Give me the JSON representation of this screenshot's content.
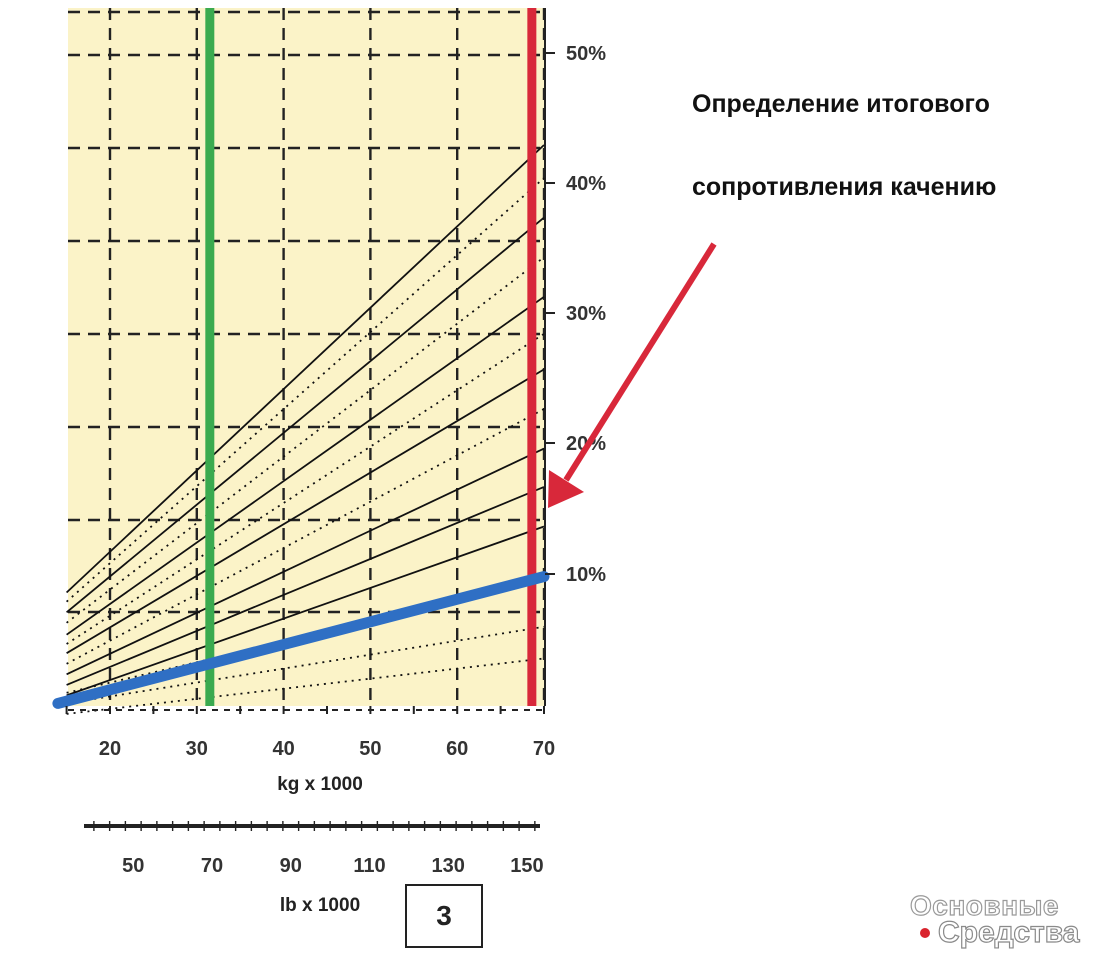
{
  "chart_data": {
    "type": "line",
    "x_axis": {
      "title": "kg x 1000",
      "ticks": [
        20,
        30,
        40,
        50,
        60,
        70
      ],
      "range": [
        15,
        70
      ]
    },
    "x_axis_secondary": {
      "title": "lb x 1000",
      "ticks": [
        50,
        70,
        90,
        110,
        130,
        150
      ],
      "range": [
        33,
        154
      ]
    },
    "right_axis": {
      "labels": [
        "10%",
        "20%",
        "30%",
        "40%",
        "50%"
      ]
    },
    "background_color": "#fbf3c8",
    "grid": true,
    "series": [
      {
        "style": "solid",
        "x": [
          15,
          70
        ],
        "y": [
          0.8,
          13.6
        ]
      },
      {
        "style": "solid",
        "x": [
          15,
          70
        ],
        "y": [
          1.6,
          16.6
        ]
      },
      {
        "style": "solid",
        "x": [
          15,
          70
        ],
        "y": [
          2.4,
          19.5
        ]
      },
      {
        "style": "solid",
        "x": [
          15,
          70
        ],
        "y": [
          4.0,
          25.5
        ]
      },
      {
        "style": "solid",
        "x": [
          15,
          70
        ],
        "y": [
          5.4,
          31.0
        ]
      },
      {
        "style": "solid",
        "x": [
          15,
          70
        ],
        "y": [
          7.1,
          37.0
        ]
      },
      {
        "style": "solid",
        "x": [
          15,
          70
        ],
        "y": [
          8.6,
          42.5
        ]
      },
      {
        "style": "dotted",
        "x": [
          15,
          70
        ],
        "y": [
          -0.6,
          3.6
        ]
      },
      {
        "style": "dotted",
        "x": [
          15,
          70
        ],
        "y": [
          0.2,
          6.0
        ]
      },
      {
        "style": "dotted",
        "x": [
          15,
          70
        ],
        "y": [
          1.0,
          9.5
        ]
      },
      {
        "style": "dotted",
        "x": [
          15,
          70
        ],
        "y": [
          3.2,
          22.5
        ]
      },
      {
        "style": "dotted",
        "x": [
          15,
          70
        ],
        "y": [
          4.7,
          28.2
        ]
      },
      {
        "style": "dotted",
        "x": [
          15,
          70
        ],
        "y": [
          6.3,
          34.0
        ]
      },
      {
        "style": "dotted",
        "x": [
          15,
          70
        ],
        "y": [
          7.9,
          40.0
        ]
      },
      {
        "style": "highlight",
        "color": "#2f6fc4",
        "x": [
          14,
          70
        ],
        "y": [
          0.2,
          9.8
        ]
      }
    ],
    "vertical_markers": [
      {
        "x": 31.5,
        "color": "#3aaa4f"
      },
      {
        "x": 68.6,
        "color": "#d8283a"
      }
    ],
    "annotation": {
      "lines": [
        "Определение итогового",
        "сопротивления качению"
      ],
      "arrow_color": "#d8283a",
      "points_to": {
        "x": 70,
        "y": 9.8
      }
    }
  },
  "figure_number": "3",
  "watermark": {
    "line1": "Основные",
    "line2": "Средства",
    "dot_color": "#d9232d"
  }
}
